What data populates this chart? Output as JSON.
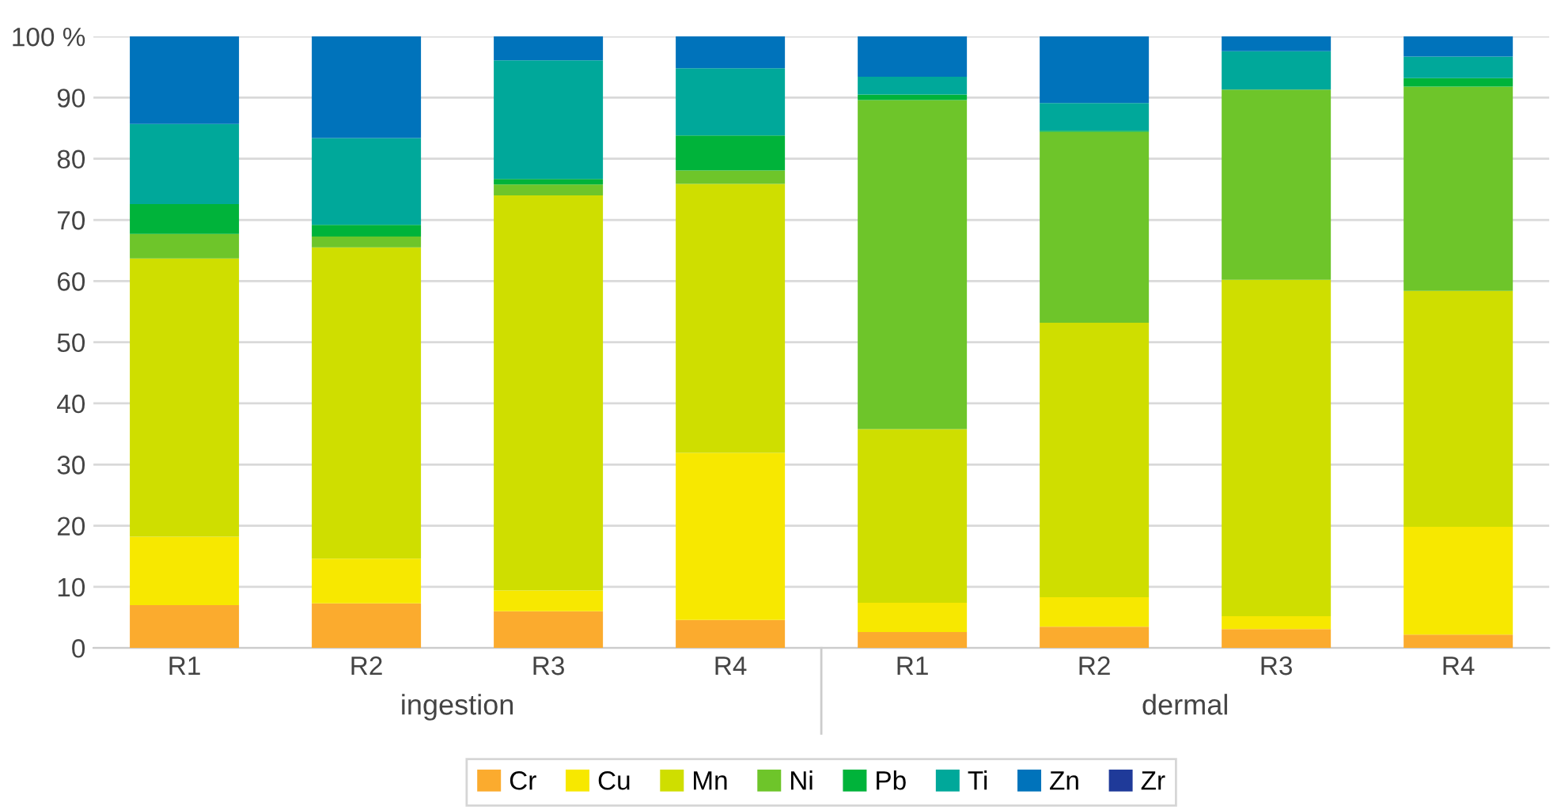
{
  "chart_data": {
    "type": "bar",
    "stacked": true,
    "categories": [
      "R1",
      "R2",
      "R3",
      "R4",
      "R1",
      "R2",
      "R3",
      "R4"
    ],
    "series": [
      {
        "name": "Cr",
        "color": "#fbab2e",
        "values": [
          7.0,
          7.3,
          6.0,
          4.6,
          2.6,
          3.5,
          3.1,
          2.2
        ]
      },
      {
        "name": "Cu",
        "color": "#f7e800",
        "values": [
          11.2,
          7.3,
          3.4,
          27.3,
          4.8,
          4.8,
          2.1,
          17.6
        ]
      },
      {
        "name": "Mn",
        "color": "#cfde00",
        "values": [
          45.5,
          50.9,
          64.6,
          44.0,
          28.4,
          44.9,
          55.0,
          38.6
        ]
      },
      {
        "name": "Ni",
        "color": "#6ec52a",
        "values": [
          4.0,
          1.8,
          1.8,
          2.2,
          53.8,
          31.2,
          31.1,
          33.4
        ]
      },
      {
        "name": "Pb",
        "color": "#00b33a",
        "values": [
          4.9,
          1.9,
          0.9,
          5.7,
          0.9,
          0.2,
          0,
          1.4
        ]
      },
      {
        "name": "Ti",
        "color": "#00a89a",
        "values": [
          13.1,
          14.2,
          19.4,
          11.0,
          2.9,
          4.5,
          6.3,
          3.5
        ]
      },
      {
        "name": "Zn",
        "color": "#0073bb",
        "values": [
          14.3,
          16.6,
          3.9,
          5.2,
          6.6,
          10.9,
          2.4,
          3.3
        ]
      },
      {
        "name": "Zr",
        "color": "#1f3a99",
        "values": [
          0,
          0,
          0,
          0,
          0,
          0,
          0,
          0
        ]
      }
    ],
    "annotations": [
      "ingestion",
      "dermal"
    ],
    "ylim": [
      0,
      100
    ],
    "yticks": [
      0,
      10,
      20,
      30,
      40,
      50,
      60,
      70,
      80,
      90,
      {
        "value": 100,
        "label": "100 %"
      }
    ],
    "grid": "y",
    "legend": "bottom"
  }
}
